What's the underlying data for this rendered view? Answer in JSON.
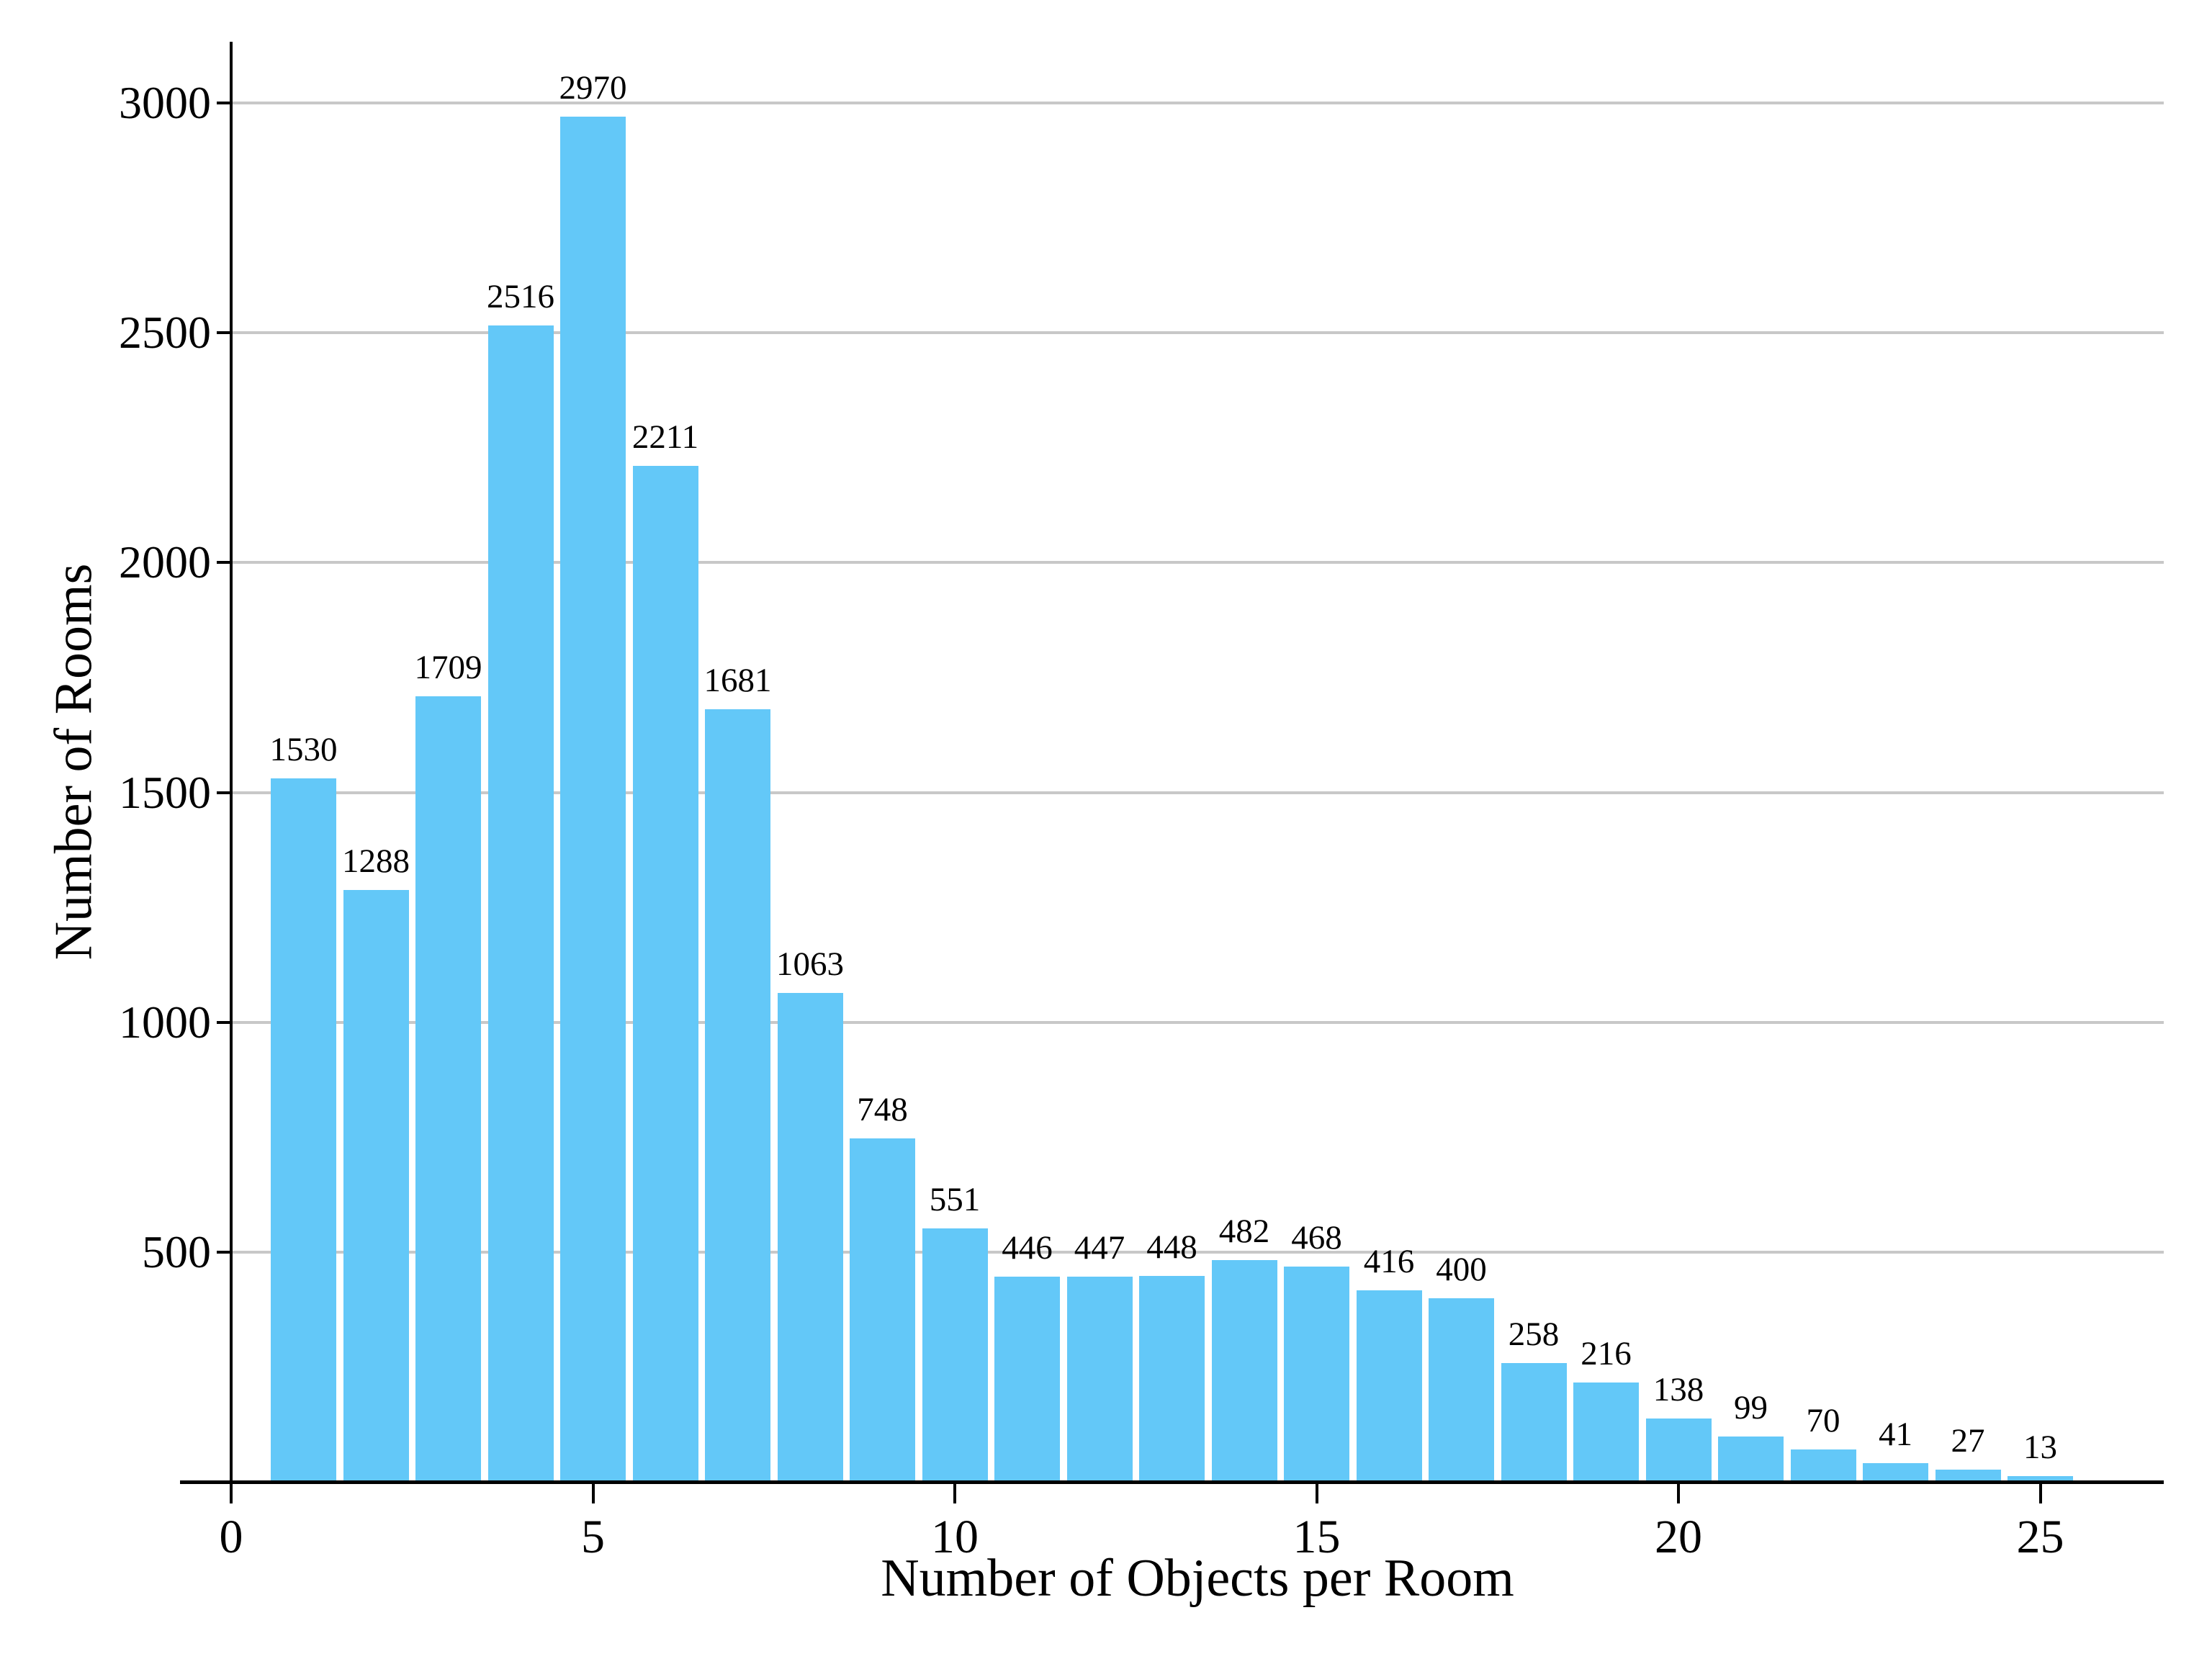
{
  "chart_data": {
    "type": "bar",
    "title": "",
    "xlabel": "Number of Objects per Room",
    "ylabel": "Number of Rooms",
    "x": [
      1,
      2,
      3,
      4,
      5,
      6,
      7,
      8,
      9,
      10,
      11,
      12,
      13,
      14,
      15,
      16,
      17,
      18,
      19,
      20,
      21,
      22,
      23,
      24,
      25
    ],
    "values": [
      1530,
      1288,
      1709,
      2516,
      2970,
      2211,
      1681,
      1063,
      748,
      551,
      446,
      447,
      448,
      482,
      468,
      416,
      400,
      258,
      216,
      138,
      99,
      70,
      41,
      27,
      13
    ],
    "bar_value_labels": [
      "1530",
      "1288",
      "1709",
      "2516",
      "2970",
      "2211",
      "1681",
      "1063",
      "748",
      "551",
      "446",
      "447",
      "448",
      "482",
      "468",
      "416",
      "400",
      "258",
      "216",
      "138",
      "99",
      "70",
      "41",
      "27",
      "13"
    ],
    "xticks": [
      0,
      5,
      10,
      15,
      20,
      25
    ],
    "yticks": [
      500,
      1000,
      1500,
      2000,
      2500,
      3000
    ],
    "xlim": [
      -0.7,
      26.7
    ],
    "ylim": [
      0,
      3119
    ],
    "grid": "horizontal-only",
    "legend": "none",
    "colors": {
      "bar_fill": "#63C8F8",
      "gridline": "#C8C8C8",
      "axis": "#000000",
      "text": "#000000",
      "background": "#FFFFFF"
    }
  }
}
